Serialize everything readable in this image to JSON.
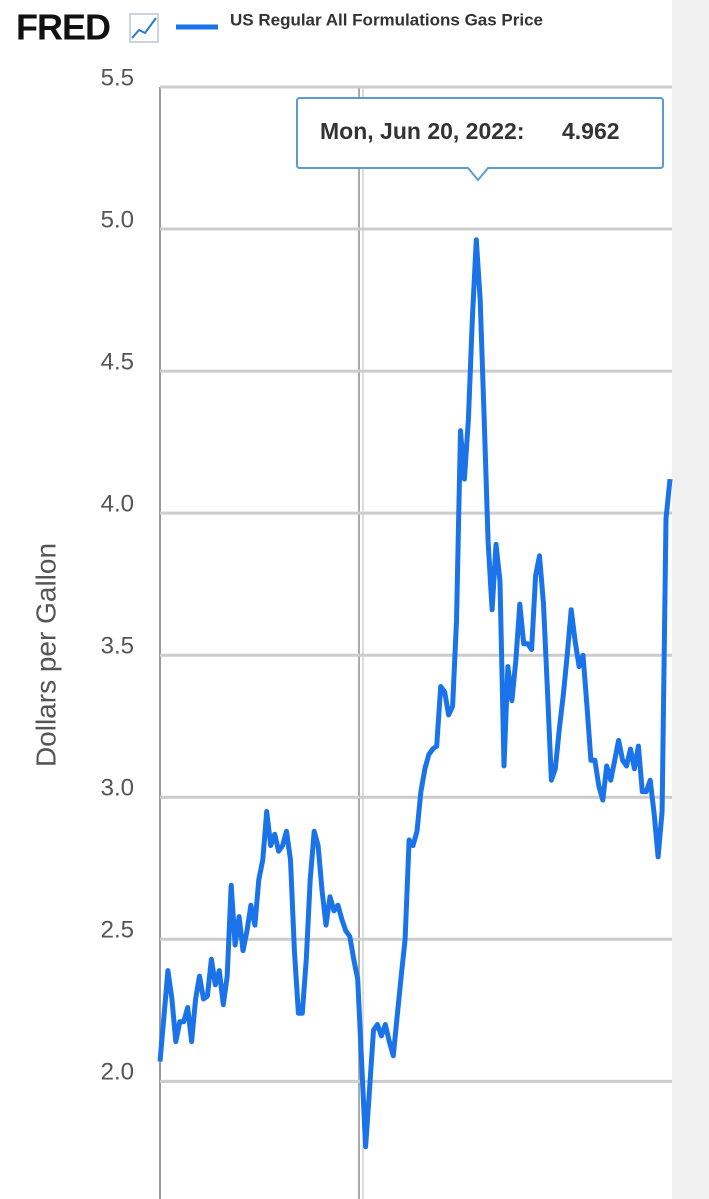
{
  "chart_data": {
    "type": "line",
    "logo": "FRED",
    "y_label": "Dollars per Gallon",
    "series": [
      {
        "name": "US Regular All Formulations Gas Price",
        "color": "#1a73e8",
        "values": [
          2.07,
          2.23,
          2.39,
          2.29,
          2.14,
          2.21,
          2.21,
          2.26,
          2.14,
          2.29,
          2.37,
          2.29,
          2.3,
          2.43,
          2.34,
          2.39,
          2.27,
          2.37,
          2.69,
          2.48,
          2.58,
          2.46,
          2.53,
          2.62,
          2.55,
          2.71,
          2.78,
          2.95,
          2.83,
          2.87,
          2.81,
          2.83,
          2.88,
          2.78,
          2.46,
          2.24,
          2.24,
          2.43,
          2.71,
          2.88,
          2.83,
          2.67,
          2.55,
          2.65,
          2.6,
          2.62,
          2.57,
          2.53,
          2.51,
          2.43,
          2.36,
          2.07,
          1.77,
          1.97,
          2.18,
          2.2,
          2.16,
          2.2,
          2.14,
          2.09,
          2.23,
          2.37,
          2.5,
          2.85,
          2.83,
          2.88,
          3.02,
          3.1,
          3.15,
          3.17,
          3.18,
          3.39,
          3.37,
          3.29,
          3.32,
          3.62,
          4.29,
          4.12,
          4.33,
          4.68,
          4.962,
          4.75,
          4.33,
          3.9,
          3.66,
          3.89,
          3.76,
          3.11,
          3.46,
          3.34,
          3.48,
          3.68,
          3.54,
          3.54,
          3.52,
          3.78,
          3.85,
          3.68,
          3.38,
          3.06,
          3.1,
          3.24,
          3.36,
          3.5,
          3.66,
          3.55,
          3.46,
          3.5,
          3.32,
          3.13,
          3.13,
          3.04,
          2.99,
          3.11,
          3.06,
          3.13,
          3.2,
          3.13,
          3.11,
          3.17,
          3.1,
          3.18,
          3.02,
          3.02,
          3.06,
          2.94,
          2.79,
          2.95,
          3.98,
          4.12
        ]
      }
    ],
    "ylim": [
      1.6,
      5.5
    ],
    "yticks": [
      {
        "value": 2,
        "label": "2.0"
      },
      2.5,
      {
        "value": 3,
        "label": "3.0"
      },
      3.5,
      {
        "value": 4,
        "label": "4.0"
      },
      4.5,
      {
        "value": 5,
        "label": "5.0"
      },
      5.5
    ],
    "grid": true,
    "tooltip": {
      "date": "Mon, Jun 20, 2022:",
      "value": 4.962
    }
  }
}
